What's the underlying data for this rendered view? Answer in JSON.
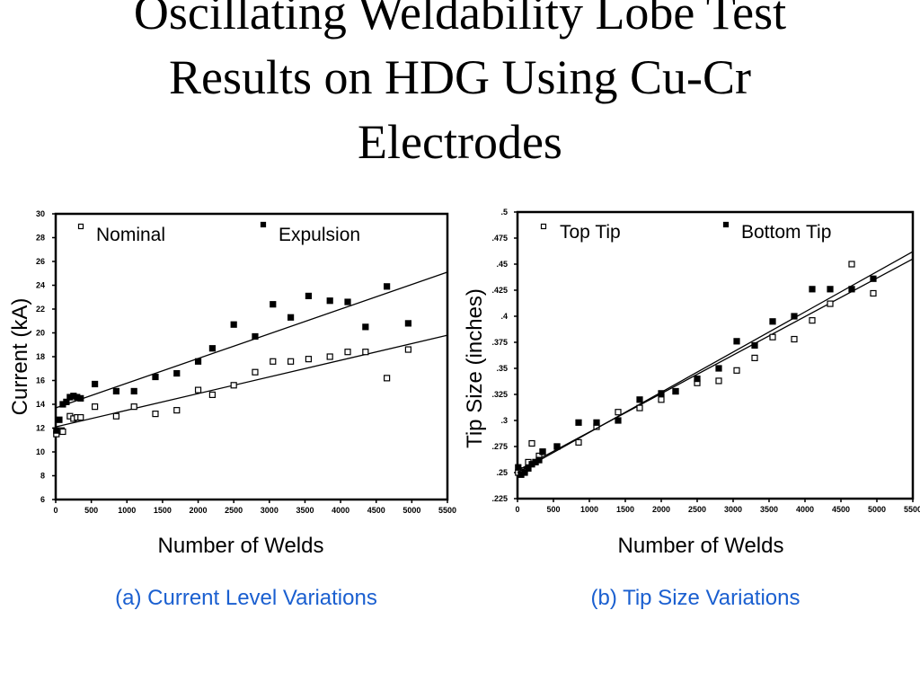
{
  "title": {
    "line1": "Oscillating Weldability Lobe Test",
    "line2": "Results on HDG Using Cu-Cr",
    "line3": "Electrodes"
  },
  "chart_data": [
    {
      "type": "scatter",
      "caption": "(a) Current Level Variations",
      "xlabel": "Number of Welds",
      "ylabel": "Current (kA)",
      "xlim": [
        0,
        5500
      ],
      "ylim": [
        6,
        30
      ],
      "x_ticks": [
        "0",
        "500",
        "1000",
        "1500",
        "2000",
        "2500",
        "3000",
        "3500",
        "4000",
        "4500",
        "5000",
        "5500"
      ],
      "y_ticks": [
        "6",
        "8",
        "10",
        "12",
        "14",
        "16",
        "18",
        "20",
        "22",
        "24",
        "26",
        "28",
        "30"
      ],
      "legend_position": "top",
      "series": [
        {
          "name": "Nominal",
          "marker": "open-square",
          "points": [
            [
              10,
              11.5
            ],
            [
              80,
              11.8
            ],
            [
              100,
              11.7
            ],
            [
              200,
              13
            ],
            [
              250,
              12.8
            ],
            [
              300,
              12.9
            ],
            [
              350,
              12.9
            ],
            [
              550,
              13.8
            ],
            [
              850,
              13
            ],
            [
              1100,
              13.8
            ],
            [
              1400,
              13.2
            ],
            [
              1700,
              13.5
            ],
            [
              2000,
              15.2
            ],
            [
              2200,
              14.8
            ],
            [
              2500,
              15.6
            ],
            [
              2800,
              16.7
            ],
            [
              3050,
              17.6
            ],
            [
              3300,
              17.6
            ],
            [
              3550,
              17.8
            ],
            [
              3850,
              18
            ],
            [
              4100,
              18.4
            ],
            [
              4350,
              18.4
            ],
            [
              4650,
              16.2
            ],
            [
              4950,
              18.6
            ]
          ],
          "trend": [
            [
              0,
              12.1
            ],
            [
              5500,
              19.8
            ]
          ]
        },
        {
          "name": "Expulsion",
          "marker": "filled-square",
          "points": [
            [
              10,
              11.8
            ],
            [
              50,
              12.7
            ],
            [
              100,
              14
            ],
            [
              150,
              14.2
            ],
            [
              200,
              14.6
            ],
            [
              250,
              14.7
            ],
            [
              300,
              14.6
            ],
            [
              350,
              14.5
            ],
            [
              550,
              15.7
            ],
            [
              850,
              15.1
            ],
            [
              1100,
              15.1
            ],
            [
              1400,
              16.3
            ],
            [
              1700,
              16.6
            ],
            [
              2000,
              17.6
            ],
            [
              2200,
              18.7
            ],
            [
              2500,
              20.7
            ],
            [
              2800,
              19.7
            ],
            [
              3050,
              22.4
            ],
            [
              3300,
              21.3
            ],
            [
              3550,
              23.1
            ],
            [
              3850,
              22.7
            ],
            [
              4100,
              22.6
            ],
            [
              4350,
              20.5
            ],
            [
              4650,
              23.9
            ],
            [
              4950,
              20.8
            ]
          ],
          "trend": [
            [
              0,
              13.7
            ],
            [
              5500,
              25.1
            ]
          ]
        }
      ]
    },
    {
      "type": "scatter",
      "caption": "(b) Tip Size Variations",
      "xlabel": "Number of Welds",
      "ylabel": "Tip Size (inches)",
      "xlim": [
        0,
        5500
      ],
      "ylim": [
        0.225,
        0.5
      ],
      "x_ticks": [
        "0",
        "500",
        "1000",
        "1500",
        "2000",
        "2500",
        "3000",
        "3500",
        "4000",
        "4500",
        "5000",
        "5500"
      ],
      "y_ticks": [
        ".225",
        ".25",
        ".275",
        ".3",
        ".325",
        ".35",
        ".375",
        ".4",
        ".425",
        ".45",
        ".475",
        ".5"
      ],
      "legend_position": "top",
      "series": [
        {
          "name": "Top Tip",
          "marker": "open-square",
          "points": [
            [
              10,
              0.25
            ],
            [
              50,
              0.252
            ],
            [
              100,
              0.252
            ],
            [
              150,
              0.26
            ],
            [
              200,
              0.278
            ],
            [
              250,
              0.26
            ],
            [
              300,
              0.266
            ],
            [
              350,
              0.27
            ],
            [
              550,
              0.275
            ],
            [
              850,
              0.279
            ],
            [
              1100,
              0.294
            ],
            [
              1400,
              0.308
            ],
            [
              1700,
              0.312
            ],
            [
              2000,
              0.32
            ],
            [
              2200,
              0.328
            ],
            [
              2500,
              0.336
            ],
            [
              2800,
              0.338
            ],
            [
              3050,
              0.348
            ],
            [
              3300,
              0.36
            ],
            [
              3550,
              0.38
            ],
            [
              3850,
              0.378
            ],
            [
              4100,
              0.396
            ],
            [
              4350,
              0.412
            ],
            [
              4650,
              0.45
            ],
            [
              4950,
              0.422
            ]
          ],
          "trend": [
            [
              0,
              0.252
            ],
            [
              5500,
              0.455
            ]
          ]
        },
        {
          "name": "Bottom Tip",
          "marker": "filled-square",
          "points": [
            [
              10,
              0.255
            ],
            [
              50,
              0.248
            ],
            [
              100,
              0.25
            ],
            [
              150,
              0.254
            ],
            [
              200,
              0.258
            ],
            [
              250,
              0.26
            ],
            [
              300,
              0.262
            ],
            [
              350,
              0.27
            ],
            [
              550,
              0.275
            ],
            [
              850,
              0.298
            ],
            [
              1100,
              0.298
            ],
            [
              1400,
              0.3
            ],
            [
              1700,
              0.32
            ],
            [
              2000,
              0.326
            ],
            [
              2200,
              0.328
            ],
            [
              2500,
              0.34
            ],
            [
              2800,
              0.35
            ],
            [
              3050,
              0.376
            ],
            [
              3300,
              0.372
            ],
            [
              3550,
              0.395
            ],
            [
              3850,
              0.4
            ],
            [
              4100,
              0.426
            ],
            [
              4350,
              0.426
            ],
            [
              4650,
              0.426
            ],
            [
              4950,
              0.436
            ]
          ],
          "trend": [
            [
              0,
              0.25
            ],
            [
              5500,
              0.462
            ]
          ]
        }
      ]
    }
  ]
}
